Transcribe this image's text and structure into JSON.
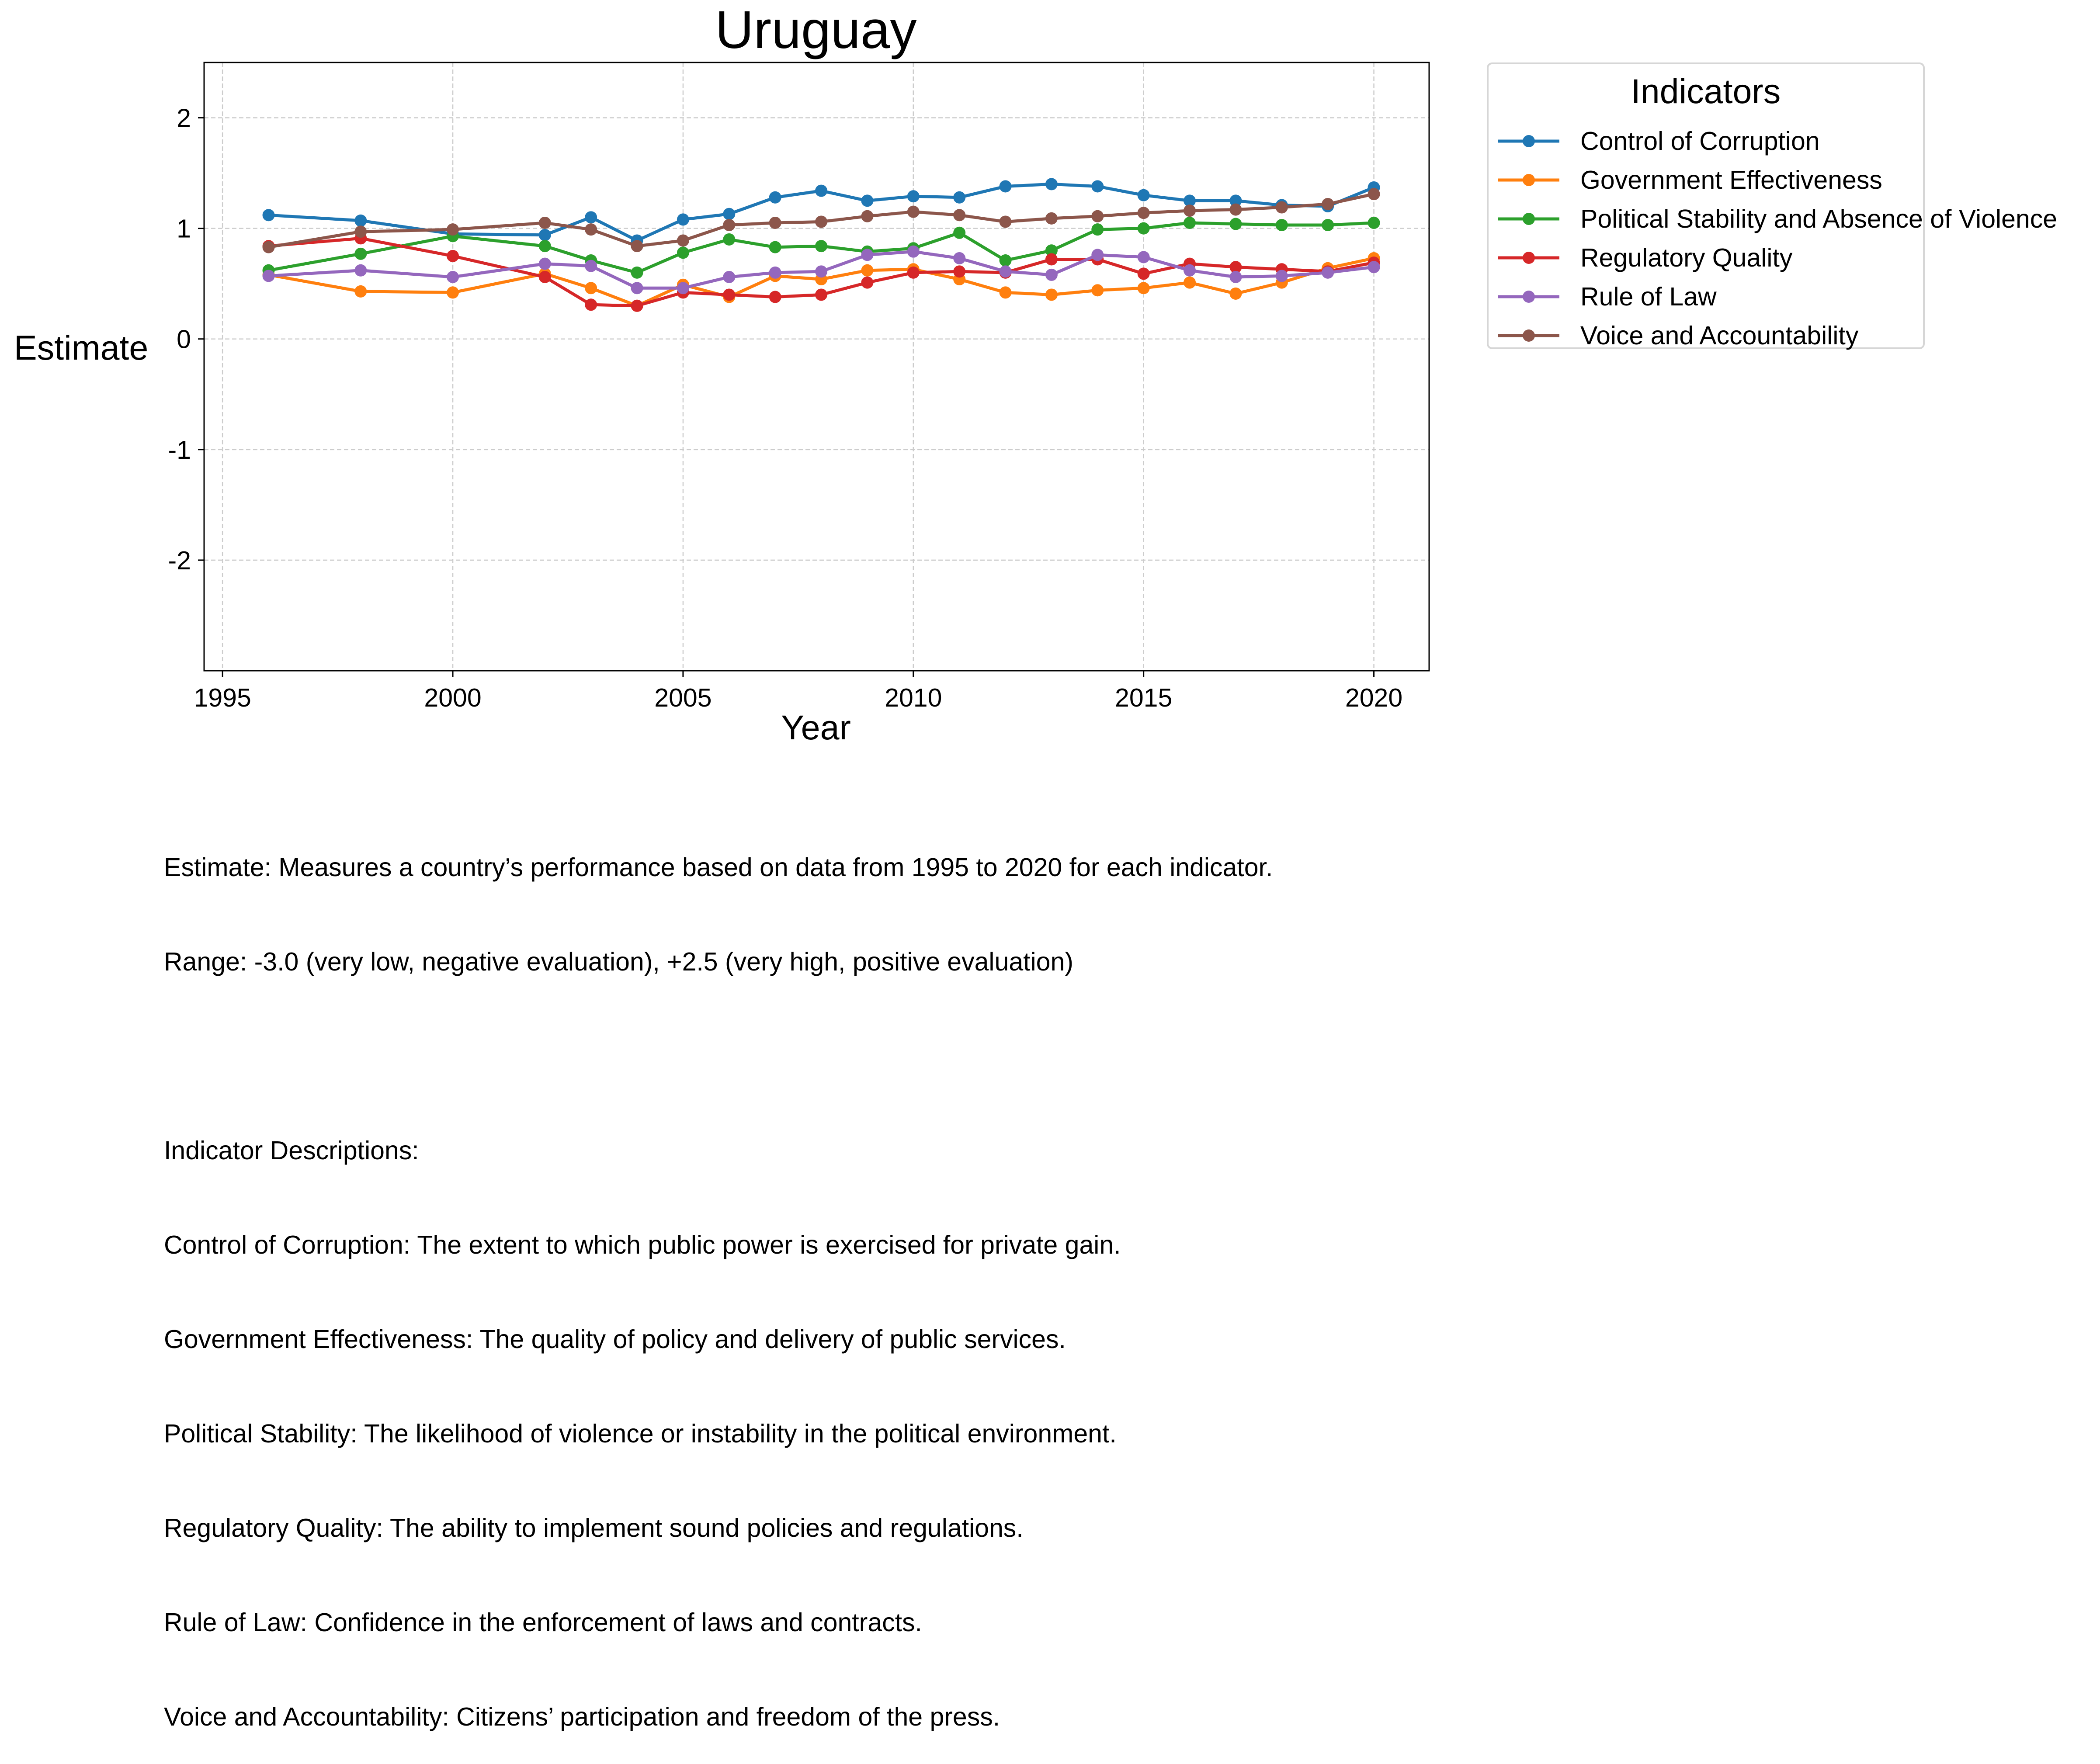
{
  "chart_data": {
    "type": "line",
    "title": "Uruguay",
    "xlabel": "Year",
    "ylabel": "Estimate",
    "xlim": [
      1994.6,
      2021.2
    ],
    "ylim": [
      -3.0,
      2.5
    ],
    "x_ticks": [
      1995,
      2000,
      2005,
      2010,
      2015,
      2020
    ],
    "y_ticks": [
      -2,
      -1,
      0,
      1,
      2
    ],
    "grid": true,
    "legend_title": "Indicators",
    "legend_position": "outside-right",
    "x": [
      1996,
      1998,
      2000,
      2002,
      2003,
      2004,
      2005,
      2006,
      2007,
      2008,
      2009,
      2010,
      2011,
      2012,
      2013,
      2014,
      2015,
      2016,
      2017,
      2018,
      2019,
      2020
    ],
    "series": [
      {
        "name": "Control of Corruption",
        "color": "#1f77b4",
        "values": [
          1.12,
          1.07,
          0.95,
          0.94,
          1.1,
          0.89,
          1.08,
          1.13,
          1.28,
          1.34,
          1.25,
          1.29,
          1.28,
          1.38,
          1.4,
          1.38,
          1.3,
          1.25,
          1.25,
          1.21,
          1.2,
          1.37
        ]
      },
      {
        "name": "Government Effectiveness",
        "color": "#ff7f0e",
        "values": [
          0.58,
          0.43,
          0.42,
          0.59,
          0.46,
          0.3,
          0.49,
          0.38,
          0.57,
          0.54,
          0.62,
          0.63,
          0.54,
          0.42,
          0.4,
          0.44,
          0.46,
          0.51,
          0.41,
          0.51,
          0.64,
          0.73
        ]
      },
      {
        "name": "Political Stability and Absence of Violence",
        "color": "#2ca02c",
        "values": [
          0.62,
          0.77,
          0.93,
          0.84,
          0.71,
          0.6,
          0.78,
          0.9,
          0.83,
          0.84,
          0.79,
          0.82,
          0.96,
          0.71,
          0.8,
          0.99,
          1.0,
          1.05,
          1.04,
          1.03,
          1.03,
          1.05
        ]
      },
      {
        "name": "Regulatory Quality",
        "color": "#d62728",
        "values": [
          0.84,
          0.91,
          0.75,
          0.56,
          0.31,
          0.3,
          0.42,
          0.4,
          0.38,
          0.4,
          0.51,
          0.6,
          0.61,
          0.6,
          0.72,
          0.72,
          0.59,
          0.68,
          0.65,
          0.63,
          0.61,
          0.69
        ]
      },
      {
        "name": "Rule of Law",
        "color": "#9467bd",
        "values": [
          0.57,
          0.62,
          0.56,
          0.68,
          0.66,
          0.46,
          0.46,
          0.56,
          0.6,
          0.61,
          0.76,
          0.79,
          0.73,
          0.61,
          0.58,
          0.76,
          0.74,
          0.62,
          0.56,
          0.57,
          0.6,
          0.65
        ]
      },
      {
        "name": "Voice and Accountability",
        "color": "#8c564b",
        "values": [
          0.83,
          0.97,
          0.99,
          1.05,
          0.99,
          0.84,
          0.89,
          1.03,
          1.05,
          1.06,
          1.11,
          1.15,
          1.12,
          1.06,
          1.09,
          1.11,
          1.14,
          1.16,
          1.17,
          1.19,
          1.22,
          1.31
        ]
      }
    ]
  },
  "notes": {
    "lines": [
      "Estimate: Measures a country’s performance based on data from 1995 to 2020 for each indicator.",
      "Range: -3.0 (very low, negative evaluation), +2.5 (very high, positive evaluation)",
      "",
      "Indicator Descriptions:",
      "Control of Corruption: The extent to which public power is exercised for private gain.",
      "Government Effectiveness: The quality of policy and delivery of public services.",
      "Political Stability: The likelihood of violence or instability in the political environment.",
      "Regulatory Quality: The ability to implement sound policies and regulations.",
      "Rule of Law: Confidence in the enforcement of laws and contracts.",
      "Voice and Accountability: Citizens’ participation and freedom of the press."
    ]
  }
}
